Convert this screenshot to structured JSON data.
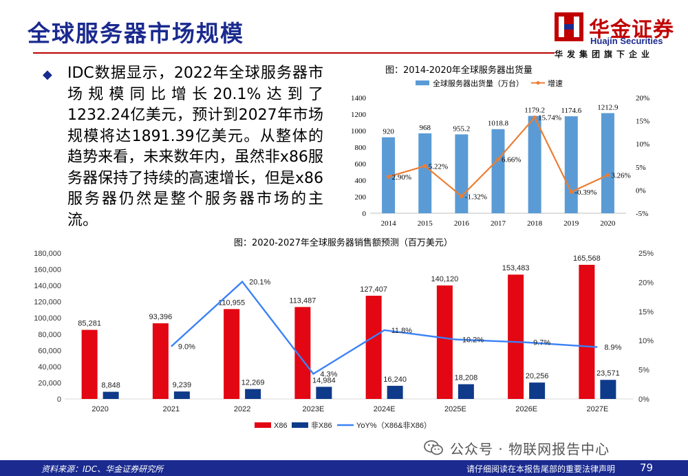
{
  "header": {
    "title": "全球服务器市场规模",
    "logo_cn": "华金证券",
    "logo_en": "Huajin Securities",
    "logo_tagline": "华发集团旗下企业"
  },
  "bullet": {
    "text": "IDC数据显示，2022年全球服务器市场规模同比增长20.1%达到了1232.24亿美元，预计到2027年市场规模将达1891.39亿美元。从整体的趋势来看，未来数年内，虽然非x86服务器保持了持续的高速增长，但是x86服务器仍然是整个服务器市场的主流。"
  },
  "chart_data": [
    {
      "type": "bar",
      "title": "图：2014-2020年全球服务器出货量",
      "categories": [
        "2014",
        "2015",
        "2016",
        "2017",
        "2018",
        "2019",
        "2020"
      ],
      "series": [
        {
          "name": "全球服务器出货量（万台）",
          "type": "bar",
          "axis": "left",
          "color": "#5b9bd5",
          "values": [
            920,
            968,
            955.2,
            1018.8,
            1179.2,
            1174.6,
            1212.9
          ],
          "labels": [
            "920",
            "968",
            "955.2",
            "1018.8",
            "1179.2",
            "1174.6",
            "1212.9"
          ]
        },
        {
          "name": "增速",
          "type": "line",
          "axis": "right",
          "color": "#ed7d31",
          "values": [
            2.9,
            5.22,
            -1.32,
            6.66,
            15.74,
            -0.39,
            3.26
          ],
          "labels": [
            "2.90%",
            "5.22%",
            "-1.32%",
            "6.66%",
            "15.74%",
            "-0.39%",
            "3.26%"
          ]
        }
      ],
      "ylim_left": [
        0,
        1400
      ],
      "yticks_left": [
        "0",
        "200",
        "400",
        "600",
        "800",
        "1000",
        "1200",
        "1400"
      ],
      "ylim_right": [
        -5,
        20
      ],
      "yticks_right": [
        "-5%",
        "0%",
        "5%",
        "10%",
        "15%",
        "20%"
      ],
      "grid": false,
      "legend": "top"
    },
    {
      "type": "bar",
      "title": "图：2020-2027年全球服务器销售额预测（百万美元）",
      "categories": [
        "2020",
        "2021",
        "2022",
        "2023E",
        "2024E",
        "2025E",
        "2026E",
        "2027E"
      ],
      "series": [
        {
          "name": "X86",
          "type": "bar",
          "axis": "left",
          "color": "#e30613",
          "values": [
            85281,
            93396,
            110955,
            113487,
            127407,
            140120,
            153483,
            165568
          ],
          "labels": [
            "85,281",
            "93,396",
            "110,955",
            "113,487",
            "127,407",
            "140,120",
            "153,483",
            "165,568"
          ]
        },
        {
          "name": "非X86",
          "type": "bar",
          "axis": "left",
          "color": "#0f3a8a",
          "values": [
            8848,
            9239,
            12269,
            14984,
            16240,
            18208,
            20256,
            23571
          ],
          "labels": [
            "8,848",
            "9,239",
            "12,269",
            "14,984",
            "16,240",
            "18,208",
            "20,256",
            "23,571"
          ]
        },
        {
          "name": "YoY%（X86&非X86）",
          "type": "line",
          "axis": "right",
          "color": "#3b82f6",
          "values": [
            null,
            9.0,
            20.1,
            4.3,
            11.8,
            10.2,
            9.7,
            8.9
          ],
          "labels": [
            "",
            "9.0%",
            "20.1%",
            "4.3%",
            "11.8%",
            "10.2%",
            "9.7%",
            "8.9%"
          ]
        }
      ],
      "ylim_left": [
        0,
        180000
      ],
      "yticks_left": [
        "0",
        "20,000",
        "40,000",
        "60,000",
        "80,000",
        "100,000",
        "120,000",
        "140,000",
        "160,000",
        "180,000"
      ],
      "ylim_right": [
        0,
        25
      ],
      "yticks_right": [
        "0%",
        "5%",
        "10%",
        "15%",
        "20%",
        "25%"
      ],
      "grid": false,
      "legend": "bottom"
    }
  ],
  "watermark": {
    "text": "公众号 · 物联网报告中心"
  },
  "footer": {
    "source": "资料来源：IDC、华金证券研究所",
    "disclaimer": "请仔细阅读在本报告尾部的重要法律声明",
    "page": "79"
  }
}
